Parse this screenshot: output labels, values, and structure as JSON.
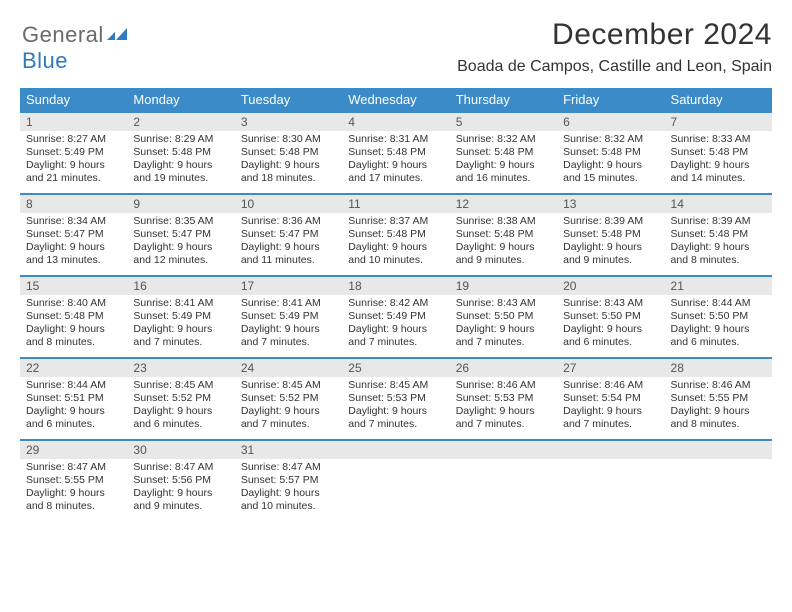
{
  "brand": {
    "part1": "General",
    "part2": "Blue"
  },
  "title": "December 2024",
  "location": "Boada de Campos, Castille and Leon, Spain",
  "colors": {
    "header_bg": "#3b8bc8",
    "header_text": "#ffffff",
    "daynum_bg": "#e8e8e8",
    "daynum_border": "#3b8bc8",
    "body_text": "#333333",
    "brand_gray": "#6b6b6b",
    "brand_blue": "#2f7bbf",
    "page_bg": "#ffffff"
  },
  "typography": {
    "title_fontsize": 30,
    "location_fontsize": 16,
    "weekday_fontsize": 13,
    "daynum_fontsize": 12,
    "body_fontsize": 10.5
  },
  "weekdays": [
    "Sunday",
    "Monday",
    "Tuesday",
    "Wednesday",
    "Thursday",
    "Friday",
    "Saturday"
  ],
  "weeks": [
    [
      {
        "n": "1",
        "sr": "8:27 AM",
        "ss": "5:49 PM",
        "dh": "9",
        "dm": "21"
      },
      {
        "n": "2",
        "sr": "8:29 AM",
        "ss": "5:48 PM",
        "dh": "9",
        "dm": "19"
      },
      {
        "n": "3",
        "sr": "8:30 AM",
        "ss": "5:48 PM",
        "dh": "9",
        "dm": "18"
      },
      {
        "n": "4",
        "sr": "8:31 AM",
        "ss": "5:48 PM",
        "dh": "9",
        "dm": "17"
      },
      {
        "n": "5",
        "sr": "8:32 AM",
        "ss": "5:48 PM",
        "dh": "9",
        "dm": "16"
      },
      {
        "n": "6",
        "sr": "8:32 AM",
        "ss": "5:48 PM",
        "dh": "9",
        "dm": "15"
      },
      {
        "n": "7",
        "sr": "8:33 AM",
        "ss": "5:48 PM",
        "dh": "9",
        "dm": "14"
      }
    ],
    [
      {
        "n": "8",
        "sr": "8:34 AM",
        "ss": "5:47 PM",
        "dh": "9",
        "dm": "13"
      },
      {
        "n": "9",
        "sr": "8:35 AM",
        "ss": "5:47 PM",
        "dh": "9",
        "dm": "12"
      },
      {
        "n": "10",
        "sr": "8:36 AM",
        "ss": "5:47 PM",
        "dh": "9",
        "dm": "11"
      },
      {
        "n": "11",
        "sr": "8:37 AM",
        "ss": "5:48 PM",
        "dh": "9",
        "dm": "10"
      },
      {
        "n": "12",
        "sr": "8:38 AM",
        "ss": "5:48 PM",
        "dh": "9",
        "dm": "9"
      },
      {
        "n": "13",
        "sr": "8:39 AM",
        "ss": "5:48 PM",
        "dh": "9",
        "dm": "9"
      },
      {
        "n": "14",
        "sr": "8:39 AM",
        "ss": "5:48 PM",
        "dh": "9",
        "dm": "8"
      }
    ],
    [
      {
        "n": "15",
        "sr": "8:40 AM",
        "ss": "5:48 PM",
        "dh": "9",
        "dm": "8"
      },
      {
        "n": "16",
        "sr": "8:41 AM",
        "ss": "5:49 PM",
        "dh": "9",
        "dm": "7"
      },
      {
        "n": "17",
        "sr": "8:41 AM",
        "ss": "5:49 PM",
        "dh": "9",
        "dm": "7"
      },
      {
        "n": "18",
        "sr": "8:42 AM",
        "ss": "5:49 PM",
        "dh": "9",
        "dm": "7"
      },
      {
        "n": "19",
        "sr": "8:43 AM",
        "ss": "5:50 PM",
        "dh": "9",
        "dm": "7"
      },
      {
        "n": "20",
        "sr": "8:43 AM",
        "ss": "5:50 PM",
        "dh": "9",
        "dm": "6"
      },
      {
        "n": "21",
        "sr": "8:44 AM",
        "ss": "5:50 PM",
        "dh": "9",
        "dm": "6"
      }
    ],
    [
      {
        "n": "22",
        "sr": "8:44 AM",
        "ss": "5:51 PM",
        "dh": "9",
        "dm": "6"
      },
      {
        "n": "23",
        "sr": "8:45 AM",
        "ss": "5:52 PM",
        "dh": "9",
        "dm": "6"
      },
      {
        "n": "24",
        "sr": "8:45 AM",
        "ss": "5:52 PM",
        "dh": "9",
        "dm": "7"
      },
      {
        "n": "25",
        "sr": "8:45 AM",
        "ss": "5:53 PM",
        "dh": "9",
        "dm": "7"
      },
      {
        "n": "26",
        "sr": "8:46 AM",
        "ss": "5:53 PM",
        "dh": "9",
        "dm": "7"
      },
      {
        "n": "27",
        "sr": "8:46 AM",
        "ss": "5:54 PM",
        "dh": "9",
        "dm": "7"
      },
      {
        "n": "28",
        "sr": "8:46 AM",
        "ss": "5:55 PM",
        "dh": "9",
        "dm": "8"
      }
    ],
    [
      {
        "n": "29",
        "sr": "8:47 AM",
        "ss": "5:55 PM",
        "dh": "9",
        "dm": "8"
      },
      {
        "n": "30",
        "sr": "8:47 AM",
        "ss": "5:56 PM",
        "dh": "9",
        "dm": "9"
      },
      {
        "n": "31",
        "sr": "8:47 AM",
        "ss": "5:57 PM",
        "dh": "9",
        "dm": "10"
      },
      null,
      null,
      null,
      null
    ]
  ],
  "labels": {
    "sunrise": "Sunrise:",
    "sunset": "Sunset:",
    "daylight": "Daylight:",
    "hours": "hours",
    "and": "and",
    "minutes": "minutes."
  }
}
